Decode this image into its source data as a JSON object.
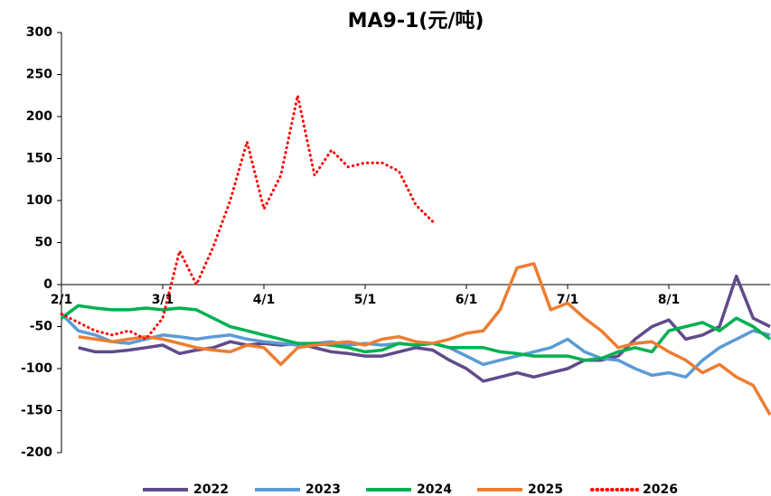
{
  "chart_data": {
    "type": "line",
    "title": "MA9-1(元/吨)",
    "categories": [
      "2/1",
      null,
      null,
      null,
      null,
      null,
      "3/1",
      null,
      null,
      null,
      null,
      null,
      "4/1",
      null,
      null,
      null,
      null,
      null,
      "5/1",
      null,
      null,
      null,
      null,
      null,
      "6/1",
      null,
      null,
      null,
      null,
      null,
      "7/1",
      null,
      null,
      null,
      null,
      null,
      "8/1",
      null,
      null,
      null,
      null,
      null,
      null
    ],
    "ylim": [
      -200,
      300
    ],
    "yticks": [
      -200,
      -150,
      -100,
      -50,
      0,
      50,
      100,
      150,
      200,
      250,
      300
    ],
    "series": [
      {
        "name": "2022",
        "color": "#5f4b8b",
        "values": [
          null,
          -75,
          -80,
          -80,
          -78,
          -75,
          -72,
          -82,
          -78,
          -75,
          -68,
          -72,
          -70,
          -72,
          -70,
          -75,
          -80,
          -82,
          -85,
          -85,
          -80,
          -75,
          -78,
          -90,
          -100,
          -115,
          -110,
          -105,
          -110,
          -105,
          -100,
          -90,
          -90,
          -85,
          -65,
          -50,
          -42,
          -65,
          -60,
          -50,
          10,
          -40,
          -50
        ]
      },
      {
        "name": "2023",
        "color": "#5b9bd5",
        "values": [
          -35,
          -55,
          -60,
          -68,
          -70,
          -65,
          -60,
          -62,
          -65,
          -62,
          -60,
          -65,
          -68,
          -70,
          -72,
          -70,
          -68,
          -72,
          -70,
          -72,
          -70,
          -72,
          -70,
          -75,
          -85,
          -95,
          -90,
          -85,
          -80,
          -75,
          -65,
          -80,
          -88,
          -90,
          -100,
          -108,
          -105,
          -110,
          -90,
          -75,
          -65,
          -55,
          -60
        ]
      },
      {
        "name": "2024",
        "color": "#00b050",
        "values": [
          -40,
          -25,
          -28,
          -30,
          -30,
          -28,
          -30,
          -28,
          -30,
          -40,
          -50,
          -55,
          -60,
          -65,
          -70,
          -70,
          -72,
          -75,
          -80,
          -78,
          -70,
          -72,
          -70,
          -75,
          -75,
          -75,
          -80,
          -82,
          -85,
          -85,
          -85,
          -90,
          -88,
          -80,
          -75,
          -80,
          -55,
          -50,
          -45,
          -55,
          -40,
          -50,
          -65
        ]
      },
      {
        "name": "2025",
        "color": "#ed7d31",
        "values": [
          null,
          -62,
          -65,
          -68,
          -65,
          -62,
          -65,
          -70,
          -75,
          -78,
          -80,
          -72,
          -75,
          -95,
          -75,
          -72,
          -70,
          -68,
          -72,
          -65,
          -62,
          -68,
          -70,
          -65,
          -58,
          -55,
          -30,
          20,
          25,
          -30,
          -22,
          -40,
          -55,
          -75,
          -70,
          -68,
          -80,
          -90,
          -105,
          -95,
          -110,
          -120,
          -155
        ]
      },
      {
        "name": "2026",
        "color": "#ff0000",
        "dotted": true,
        "values": [
          -35,
          -45,
          -55,
          -60,
          -55,
          -65,
          -40,
          40,
          0,
          45,
          100,
          170,
          90,
          130,
          225,
          130,
          160,
          140,
          145,
          145,
          135,
          95,
          75,
          null,
          null,
          null,
          null,
          null,
          null,
          null,
          null,
          null,
          null,
          null,
          null,
          null,
          null,
          null,
          null,
          null,
          null,
          null,
          null
        ]
      }
    ]
  }
}
